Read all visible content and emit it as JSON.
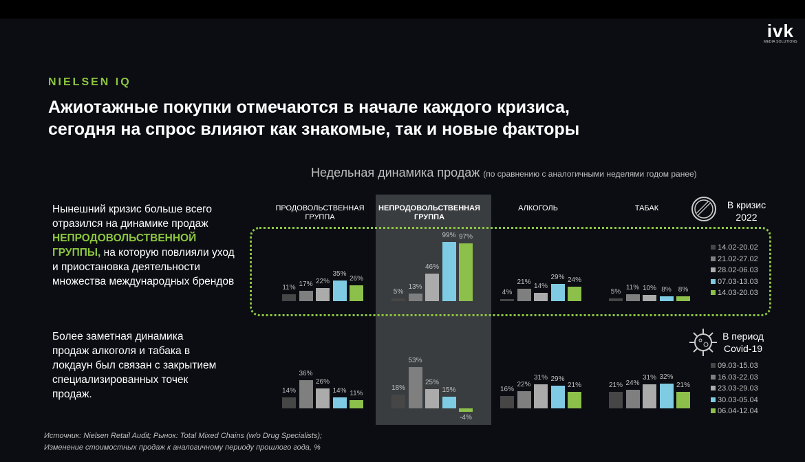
{
  "logo": {
    "main": "ivk",
    "sub": "MEDIA SOLUTIONS"
  },
  "kicker": "NIELSEN IQ",
  "title": {
    "line1": "Ажиотажные покупки отмечаются в начале каждого кризиса,",
    "line2": "сегодня на спрос влияют как знакомые, так и новые факторы"
  },
  "subtitle": {
    "main": "Недельная динамика продаж",
    "note": "(по сравнению с аналогичными неделями годом ранее)"
  },
  "para1": {
    "before": "Нынешний кризис больше всего отразился на динамике продаж ",
    "highlight": "НЕПРОДОВОЛЬСТВЕННОЙ ГРУППЫ,",
    "after": " на которую повлияли уход и приостановка деятельности множества международных брендов"
  },
  "para2": "Более заметная динамика продаж алкоголя и табака в локдаун был связан с закрытием специализированных точек продаж.",
  "source": {
    "line1": "Источник: Nielsen Retail Audit; Рынок: Total Mixed Chains (w/o Drug Specialists);",
    "line2": "Изменение  стоимостных продаж к аналогичному периоду прошлого года, %"
  },
  "colors": [
    "#464646",
    "#7f7f7f",
    "#ababab",
    "#7ecbe3",
    "#8cc04b"
  ],
  "chart_data": [
    {
      "type": "bar",
      "title": "В кризис 2022",
      "icon": "no-entry-icon",
      "categories": [
        "ПРОДОВОЛЬСТВЕННАЯ ГРУППА",
        "НЕПРОДОВОЛЬСТВЕННАЯ ГРУППА",
        "АЛКОГОЛЬ",
        "ТАБАК"
      ],
      "legend": [
        "14.02-20.02",
        "21.02-27.02",
        "28.02-06.03",
        "07.03-13.03",
        "14.03-20.03"
      ],
      "series": [
        [
          11,
          17,
          22,
          35,
          26
        ],
        [
          5,
          13,
          46,
          99,
          97
        ],
        [
          4,
          21,
          14,
          29,
          24
        ],
        [
          5,
          11,
          10,
          8,
          8
        ]
      ]
    },
    {
      "type": "bar",
      "title": "В период Covid-19",
      "icon": "virus-icon",
      "categories": [
        "ПРОДОВОЛЬСТВЕННАЯ ГРУППА",
        "НЕПРОДОВОЛЬСТВЕННАЯ ГРУППА",
        "АЛКОГОЛЬ",
        "ТАБАК"
      ],
      "legend": [
        "09.03-15.03",
        "16.03-22.03",
        "23.03-29.03",
        "30.03-05.04",
        "06.04-12.04"
      ],
      "series": [
        [
          14,
          36,
          26,
          14,
          11
        ],
        [
          18,
          53,
          25,
          15,
          -4
        ],
        [
          16,
          22,
          31,
          29,
          21
        ],
        [
          21,
          24,
          31,
          32,
          21
        ]
      ]
    }
  ]
}
